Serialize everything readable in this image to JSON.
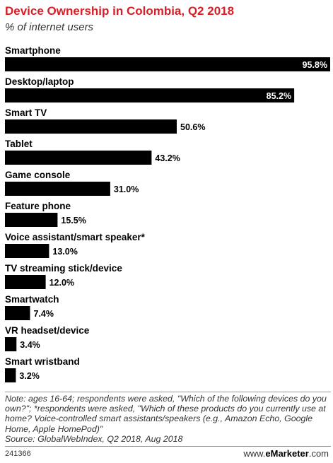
{
  "header": {
    "title": "Device Ownership in Colombia, Q2 2018",
    "subtitle": "% of internet users"
  },
  "chart_data": {
    "type": "bar",
    "orientation": "horizontal",
    "title": "Device Ownership in Colombia, Q2 2018",
    "subtitle": "% of internet users",
    "xlabel": "",
    "ylabel": "",
    "categories": [
      "Smartphone",
      "Desktop/laptop",
      "Smart TV",
      "Tablet",
      "Game console",
      "Feature phone",
      "Voice assistant/smart speaker*",
      "TV streaming stick/device",
      "Smartwatch",
      "VR headset/device",
      "Smart wristband"
    ],
    "values": [
      95.8,
      85.2,
      50.6,
      43.2,
      31.0,
      15.5,
      13.0,
      12.0,
      7.4,
      3.4,
      3.2
    ],
    "value_labels": [
      "95.8%",
      "85.2%",
      "50.6%",
      "43.2%",
      "31.0%",
      "15.5%",
      "13.0%",
      "12.0%",
      "7.4%",
      "3.4%",
      "3.2%"
    ],
    "xlim": [
      0,
      95.8
    ],
    "grid": false,
    "legend": "none",
    "bar_color": "#000000",
    "inside_label_color": "#ffffff",
    "outside_label_color": "#000000"
  },
  "footer": {
    "note": "Note: ages 16-64; respondents were asked, \"Which of the following devices do you own?\"; *respondents were asked, \"Which of these products do you currently use at home? Voice-controlled smart assistants/speakers (e.g., Amazon Echo, Google Home, Apple HomePod)\"",
    "source": "Source: GlobalWebIndex, Q2 2018, Aug 2018",
    "chart_id": "241366",
    "brand_prefix": "www.",
    "brand_name": "eMarketer",
    "brand_suffix": ".com"
  },
  "colors": {
    "title": "#d61f26",
    "bars": "#000000"
  }
}
